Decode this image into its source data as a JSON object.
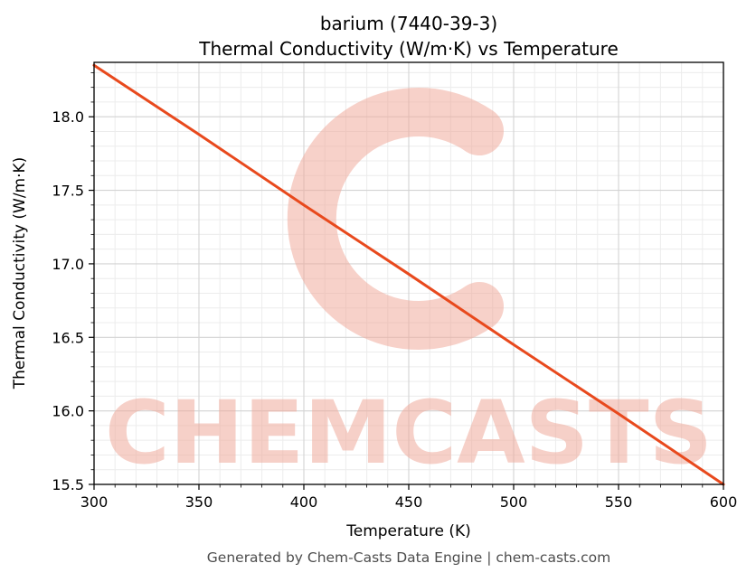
{
  "figure": {
    "title_line1": "barium (7440-39-3)",
    "title_line2": "Thermal Conductivity (W/m·K) vs Temperature",
    "footer": "Generated by Chem-Casts Data Engine | chem-casts.com"
  },
  "chart_data": {
    "type": "line",
    "title": "barium (7440-39-3) — Thermal Conductivity (W/m·K) vs Temperature",
    "xlabel": "Temperature (K)",
    "ylabel": "Thermal Conductivity (W/m·K)",
    "x": [
      300,
      350,
      400,
      450,
      500,
      550,
      600
    ],
    "y": [
      18.35,
      17.88,
      17.4,
      16.93,
      16.45,
      15.98,
      15.5
    ],
    "xlim": [
      300,
      600
    ],
    "ylim": [
      15.5,
      18.37
    ],
    "xticks": [
      300,
      350,
      400,
      450,
      500,
      550,
      600
    ],
    "yticks": [
      15.5,
      16.0,
      16.5,
      17.0,
      17.5,
      18.0
    ],
    "x_minor_step": 10,
    "y_minor_step": 0.1,
    "grid": true,
    "legend_position": "none",
    "line_color": "#e8491d",
    "line_width": 3,
    "major_grid_color": "#d3d3d3",
    "minor_grid_color": "#ececec",
    "watermark_text": "CHEMCASTS",
    "watermark_color": "#f0ab9c"
  }
}
